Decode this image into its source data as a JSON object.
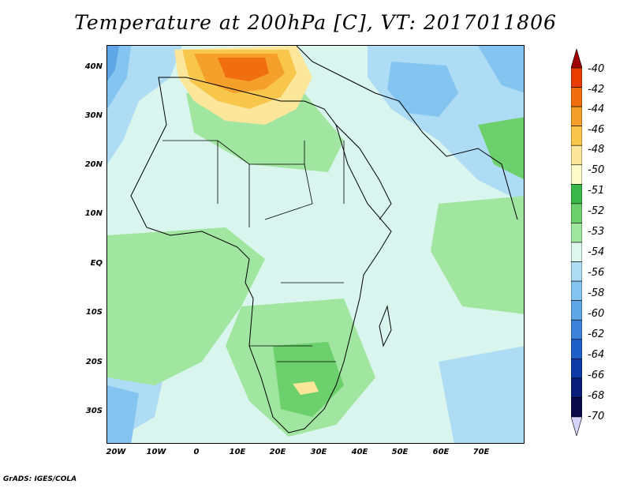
{
  "title": "Temperature at 200hPa [C], VT: 2017011806",
  "credit": "GrADS: IGES/COLA",
  "map": {
    "lat_labels": [
      "40N",
      "30N",
      "20N",
      "10N",
      "EQ",
      "10S",
      "20S",
      "30S"
    ],
    "lon_labels": [
      "20W",
      "10W",
      "0",
      "10E",
      "20E",
      "30E",
      "40E",
      "50E",
      "60E",
      "70E"
    ],
    "background_color": "#d9f5ee"
  },
  "colorbar": {
    "labels": [
      "-40",
      "-42",
      "-44",
      "-46",
      "-48",
      "-50",
      "-51",
      "-52",
      "-53",
      "-54",
      "-56",
      "-58",
      "-60",
      "-62",
      "-64",
      "-66",
      "-68",
      "-70"
    ],
    "colors": [
      "#a00000",
      "#e83c00",
      "#f06e10",
      "#f5a02a",
      "#f8c64a",
      "#fbe69a",
      "#fdfcc8",
      "#3cb84a",
      "#6cd06c",
      "#a0e6a0",
      "#def7ee",
      "#aedcf4",
      "#84c4f0",
      "#5ea6e6",
      "#3c82da",
      "#1e5ec8",
      "#0c3aa6",
      "#081e7a",
      "#0a0a4a",
      "#d6d4f8"
    ]
  }
}
